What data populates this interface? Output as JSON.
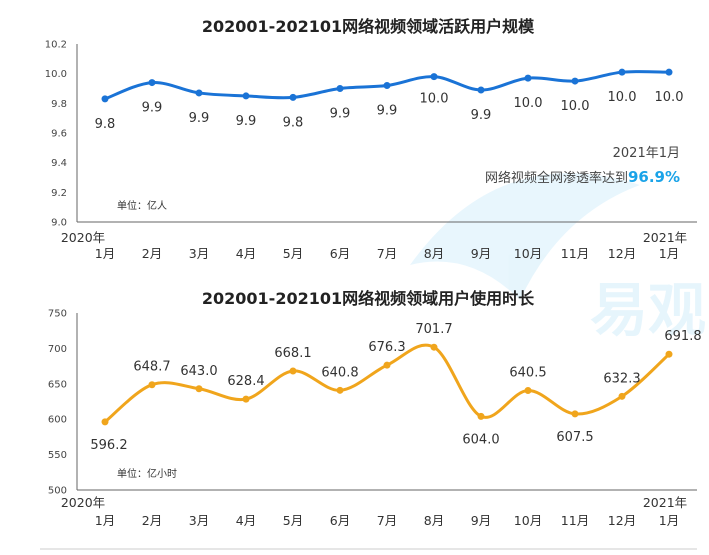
{
  "colors": {
    "accent": "#1a73d6",
    "orange": "#f0a51c",
    "axis": "#666666",
    "highlight": "#1aa3e8"
  },
  "chart_data": [
    {
      "type": "line",
      "title": "202001-202101网络视频领域活跃用户规模",
      "unit_note": "单位：亿人",
      "year_start_label": "2020年",
      "year_end_label": "2021年",
      "categories": [
        "1月",
        "2月",
        "3月",
        "4月",
        "5月",
        "6月",
        "7月",
        "8月",
        "9月",
        "10月",
        "11月",
        "12月",
        "1月"
      ],
      "values": [
        9.83,
        9.94,
        9.87,
        9.85,
        9.84,
        9.9,
        9.92,
        9.98,
        9.89,
        9.97,
        9.95,
        10.01,
        10.01
      ],
      "data_labels": [
        "9.8",
        "9.9",
        "9.9",
        "9.9",
        "9.8",
        "9.9",
        "9.9",
        "10.0",
        "9.9",
        "10.0",
        "10.0",
        "10.0",
        "10.0"
      ],
      "ylim": [
        9.0,
        10.2
      ],
      "yticks": [
        "9.0",
        "9.2",
        "9.4",
        "9.6",
        "9.8",
        "10.0",
        "10.2"
      ],
      "annotation": {
        "line1": "2021年1月",
        "line2": "网络视频全网渗透率达到",
        "value": "96.9%"
      }
    },
    {
      "type": "line",
      "title": "202001-202101网络视频领域用户使用时长",
      "unit_note": "单位：亿小时",
      "year_start_label": "2020年",
      "year_end_label": "2021年",
      "categories": [
        "1月",
        "2月",
        "3月",
        "4月",
        "5月",
        "6月",
        "7月",
        "8月",
        "9月",
        "10月",
        "11月",
        "12月",
        "1月"
      ],
      "values": [
        596.2,
        648.7,
        643.0,
        628.4,
        668.1,
        640.8,
        676.3,
        701.7,
        604.0,
        640.5,
        607.5,
        632.3,
        691.8
      ],
      "data_labels": [
        "596.2",
        "648.7",
        "643.0",
        "628.4",
        "668.1",
        "640.8",
        "676.3",
        "701.7",
        "604.0",
        "640.5",
        "607.5",
        "632.3",
        "691.8"
      ],
      "ylim": [
        500,
        750
      ],
      "yticks": [
        "500",
        "550",
        "600",
        "650",
        "700",
        "750"
      ]
    }
  ]
}
